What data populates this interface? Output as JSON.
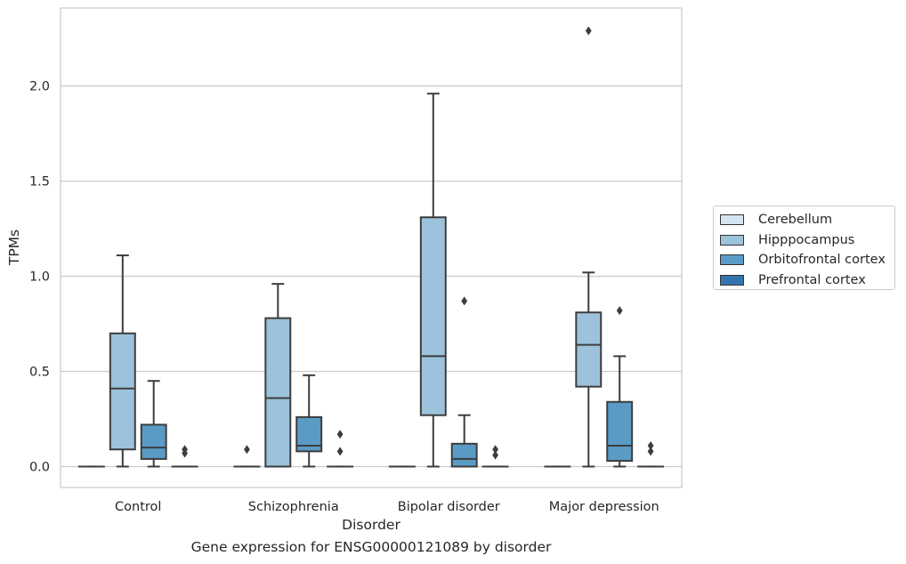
{
  "chart_data": {
    "type": "box",
    "ylabel": "TPMs",
    "xlabel": "Disorder",
    "caption": "Gene expression for ENSG00000121089 by disorder",
    "ylim": [
      -0.11,
      2.41
    ],
    "yticks": [
      "0.0",
      "0.5",
      "1.0",
      "1.5",
      "2.0"
    ],
    "grid": true,
    "legend_position": "right",
    "categories": [
      "Control",
      "Schizophrenia",
      "Bipolar disorder",
      "Major depression"
    ],
    "series": [
      {
        "name": "Cerebellum",
        "color": "#d3e4f2",
        "boxes": [
          {
            "whislo": 0.0,
            "q1": 0.0,
            "med": 0.0,
            "q3": 0.0,
            "whishi": 0.0,
            "fliers": []
          },
          {
            "whislo": 0.0,
            "q1": 0.0,
            "med": 0.0,
            "q3": 0.0,
            "whishi": 0.0,
            "fliers": [
              0.09
            ]
          },
          {
            "whislo": 0.0,
            "q1": 0.0,
            "med": 0.0,
            "q3": 0.0,
            "whishi": 0.0,
            "fliers": []
          },
          {
            "whislo": 0.0,
            "q1": 0.0,
            "med": 0.0,
            "q3": 0.0,
            "whishi": 0.0,
            "fliers": []
          }
        ]
      },
      {
        "name": "Hipppocampus",
        "color": "#9dc3dc",
        "boxes": [
          {
            "whislo": 0.0,
            "q1": 0.09,
            "med": 0.41,
            "q3": 0.7,
            "whishi": 1.11,
            "fliers": []
          },
          {
            "whislo": 0.0,
            "q1": 0.0,
            "med": 0.36,
            "q3": 0.78,
            "whishi": 0.96,
            "fliers": []
          },
          {
            "whislo": 0.0,
            "q1": 0.27,
            "med": 0.58,
            "q3": 1.31,
            "whishi": 1.96,
            "fliers": []
          },
          {
            "whislo": 0.0,
            "q1": 0.42,
            "med": 0.64,
            "q3": 0.81,
            "whishi": 1.02,
            "fliers": [
              2.29
            ]
          }
        ]
      },
      {
        "name": "Orbitofrontal cortex",
        "color": "#5a9bc6",
        "boxes": [
          {
            "whislo": 0.0,
            "q1": 0.04,
            "med": 0.1,
            "q3": 0.22,
            "whishi": 0.45,
            "fliers": []
          },
          {
            "whislo": 0.0,
            "q1": 0.08,
            "med": 0.11,
            "q3": 0.26,
            "whishi": 0.48,
            "fliers": []
          },
          {
            "whislo": 0.0,
            "q1": 0.0,
            "med": 0.04,
            "q3": 0.12,
            "whishi": 0.27,
            "fliers": [
              0.87
            ]
          },
          {
            "whislo": 0.0,
            "q1": 0.03,
            "med": 0.11,
            "q3": 0.34,
            "whishi": 0.58,
            "fliers": [
              0.82
            ]
          }
        ]
      },
      {
        "name": "Prefrontal cortex",
        "color": "#3474ad",
        "boxes": [
          {
            "whislo": 0.0,
            "q1": 0.0,
            "med": 0.0,
            "q3": 0.0,
            "whishi": 0.0,
            "fliers": [
              0.07,
              0.09
            ]
          },
          {
            "whislo": 0.0,
            "q1": 0.0,
            "med": 0.0,
            "q3": 0.0,
            "whishi": 0.0,
            "fliers": [
              0.08,
              0.17
            ]
          },
          {
            "whislo": 0.0,
            "q1": 0.0,
            "med": 0.0,
            "q3": 0.0,
            "whishi": 0.0,
            "fliers": [
              0.06,
              0.09
            ]
          },
          {
            "whislo": 0.0,
            "q1": 0.0,
            "med": 0.0,
            "q3": 0.0,
            "whishi": 0.0,
            "fliers": [
              0.08,
              0.11
            ]
          }
        ]
      }
    ]
  }
}
